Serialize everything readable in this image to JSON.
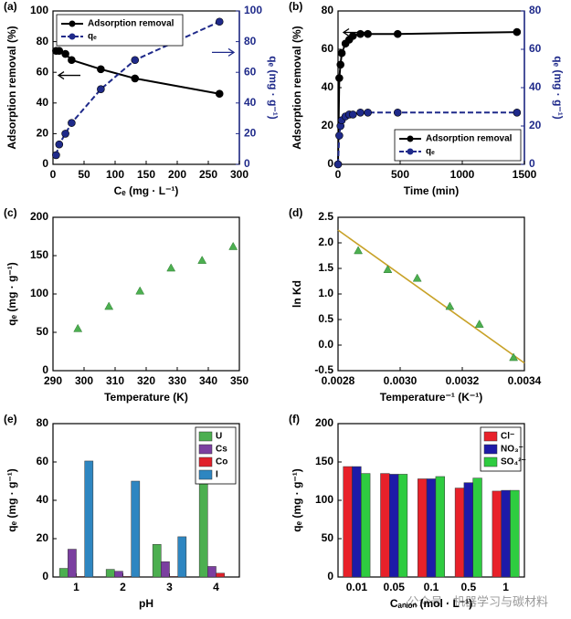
{
  "chart_data": [
    {
      "type": "line",
      "panel_label": "(a)",
      "x_label": "Cₑ (mg · L⁻¹)",
      "y_label": "Adsorption removal (%)",
      "y2_label": "qₑ (mg · g⁻¹)",
      "y2color": "#1f2a8a",
      "x": [
        5,
        10,
        20,
        30,
        77,
        132,
        268
      ],
      "series": [
        {
          "name": "Adsorption removal",
          "color": "#000000",
          "values": [
            74,
            74,
            72,
            68,
            62,
            56,
            46
          ],
          "line_style": "solid"
        },
        {
          "name": "qₑ",
          "color": "#1f2a8a",
          "values": [
            6,
            13,
            20,
            27,
            49,
            68,
            93
          ],
          "axis": "y2",
          "line_style": "dashed"
        }
      ],
      "xlim": [
        0,
        300
      ],
      "xticks": [
        0,
        50,
        100,
        150,
        200,
        250,
        300
      ],
      "ylim": [
        0,
        100
      ],
      "yticks": [
        0,
        20,
        40,
        60,
        80,
        100
      ],
      "y2lim": [
        0,
        100
      ],
      "y2ticks": [
        0,
        20,
        40,
        60,
        80,
        100
      ],
      "legend": "upper left"
    },
    {
      "type": "line",
      "panel_label": "(b)",
      "x_label": "Time (min)",
      "y_label": "Adsorption removal (%)",
      "y2_label": "qₑ (mg · g⁻¹)",
      "y2color": "#1f2a8a",
      "x": [
        0,
        10,
        20,
        30,
        60,
        90,
        120,
        180,
        240,
        480,
        1440
      ],
      "series": [
        {
          "name": "Adsorption removal",
          "color": "#000000",
          "values": [
            0,
            45,
            52,
            58,
            63,
            65,
            67,
            68,
            68,
            68,
            69
          ],
          "line_style": "solid"
        },
        {
          "name": "qₑ",
          "color": "#1f2a8a",
          "values": [
            0,
            15,
            20,
            23,
            25,
            26,
            26,
            27,
            27,
            27,
            27
          ],
          "axis": "y2",
          "line_style": "dashed"
        }
      ],
      "xlim": [
        0,
        1500
      ],
      "xticks": [
        0,
        500,
        1000,
        1500
      ],
      "ylim": [
        0,
        80
      ],
      "yticks": [
        0,
        20,
        40,
        60,
        80
      ],
      "y2lim": [
        0,
        80
      ],
      "y2ticks": [
        0,
        20,
        40,
        60,
        80
      ],
      "legend": "lower right"
    },
    {
      "type": "scatter",
      "panel_label": "(c)",
      "x_label": "Temperature (K)",
      "y_label": "qₑ (mg · g⁻¹)",
      "color": "#4caf50",
      "x": [
        298,
        308,
        318,
        328,
        338,
        348
      ],
      "values": [
        55,
        84,
        104,
        134,
        144,
        162
      ],
      "xlim": [
        290,
        350
      ],
      "xticks": [
        290,
        300,
        310,
        320,
        330,
        340,
        350
      ],
      "ylim": [
        0,
        200
      ],
      "yticks": [
        0,
        50,
        100,
        150,
        200
      ]
    },
    {
      "type": "scatter",
      "panel_label": "(d)",
      "x_label": "Temperature⁻¹ (K⁻¹)",
      "y_label": "ln Kd",
      "color": "#4caf50",
      "x": [
        0.002865,
        0.00296,
        0.003055,
        0.00316,
        0.003255,
        0.003365
      ],
      "values": [
        1.85,
        1.48,
        1.31,
        0.76,
        0.41,
        -0.24
      ],
      "fit": {
        "x": [
          0.0028,
          0.0034
        ],
        "values": [
          2.25,
          -0.35
        ],
        "color": "#c8a228"
      },
      "xlim": [
        0.0028,
        0.0034
      ],
      "xticks": [
        0.0028,
        {
          "value": 0.003,
          "label": "0.0030"
        },
        0.0032,
        0.0034
      ],
      "ylim": [
        -0.5,
        2.5
      ],
      "yticks": [
        -0.5,
        {
          "value": 0,
          "label": "0.0"
        },
        0.5,
        {
          "value": 1,
          "label": "1.0"
        },
        1.5,
        {
          "value": 2,
          "label": "2.0"
        },
        2.5
      ]
    },
    {
      "type": "bar",
      "panel_label": "(e)",
      "x_label": "pH",
      "y_label": "qₑ (mg · g⁻¹)",
      "categories": [
        "1",
        "2",
        "3",
        "4"
      ],
      "series": [
        {
          "name": "U",
          "color": "#4caf50",
          "values": [
            4.5,
            4,
            17,
            49.5
          ]
        },
        {
          "name": "Cs",
          "color": "#7b3fa0",
          "values": [
            14.5,
            3,
            8,
            5.5
          ]
        },
        {
          "name": "Co",
          "color": "#e0202a",
          "values": [
            0.3,
            0.3,
            0.3,
            2
          ]
        },
        {
          "name": "I",
          "color": "#2e86c1",
          "values": [
            60.5,
            50,
            21,
            0
          ]
        }
      ],
      "ylim": [
        0,
        80
      ],
      "yticks": [
        0,
        20,
        40,
        60,
        80
      ],
      "legend": "upper right"
    },
    {
      "type": "bar",
      "panel_label": "(f)",
      "x_label": "Cₐₙᵢₒₙ (mol · L⁻¹)",
      "y_label": "qₑ (mg · g⁻¹)",
      "categories": [
        "0.01",
        "0.05",
        "0.1",
        "0.5",
        "1"
      ],
      "series": [
        {
          "name": "Cl⁻",
          "color": "#e8212a",
          "values": [
            144,
            135,
            128,
            116,
            112
          ]
        },
        {
          "name": "NO₃⁻",
          "color": "#1d1aa8",
          "values": [
            144,
            134,
            128,
            123,
            113
          ]
        },
        {
          "name": "SO₄²⁻",
          "color": "#2ecc40",
          "values": [
            135,
            134,
            131,
            129,
            113
          ]
        }
      ],
      "ylim": [
        0,
        200
      ],
      "yticks": [
        0,
        50,
        100,
        150,
        200
      ],
      "legend": "upper right"
    }
  ],
  "watermark": "公众号 · 机器学习与碳材料"
}
